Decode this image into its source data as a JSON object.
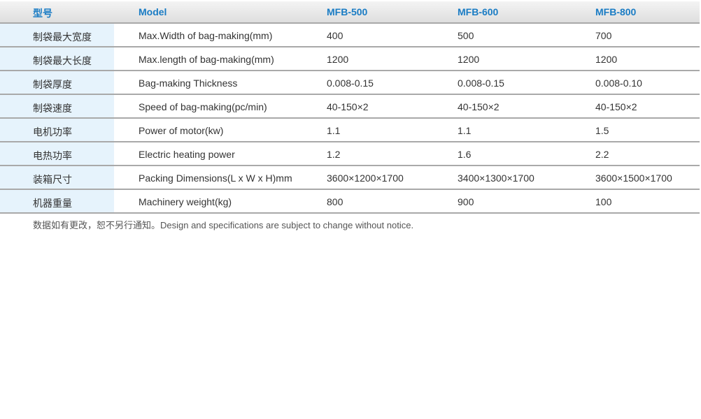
{
  "header": [
    "型号",
    "Model",
    "MFB-500",
    "MFB-600",
    "MFB-800"
  ],
  "rows": [
    [
      "制袋最大宽度",
      "Max.Width of bag-making(mm)",
      "400",
      "500",
      "700"
    ],
    [
      "制袋最大长度",
      "Max.length of bag-making(mm)",
      "1200",
      "1200",
      "1200"
    ],
    [
      "制袋厚度",
      "Bag-making Thickness",
      "0.008-0.15",
      "0.008-0.15",
      "0.008-0.10"
    ],
    [
      "制袋速度",
      "Speed of bag-making(pc/min)",
      "40-150×2",
      "40-150×2",
      "40-150×2"
    ],
    [
      "电机功率",
      "Power of motor(kw)",
      "1.1",
      "1.1",
      "1.5"
    ],
    [
      "电热功率",
      "Electric heating power",
      "1.2",
      "1.6",
      "2.2"
    ],
    [
      "装箱尺寸",
      "Packing Dimensions(L x W x H)mm",
      "3600×1200×1700",
      "3400×1300×1700",
      "3600×1500×1700"
    ],
    [
      "机器重量",
      "Machinery weight(kg)",
      "800",
      "900",
      "100"
    ]
  ],
  "note": "数据如有更改，恕不另行通知。Design and specifications are subject to change without notice.",
  "colors": {
    "header_text": "#1a7cc4",
    "first_col_bg": "#e6f3fc",
    "divider": "#a9a9a9"
  }
}
